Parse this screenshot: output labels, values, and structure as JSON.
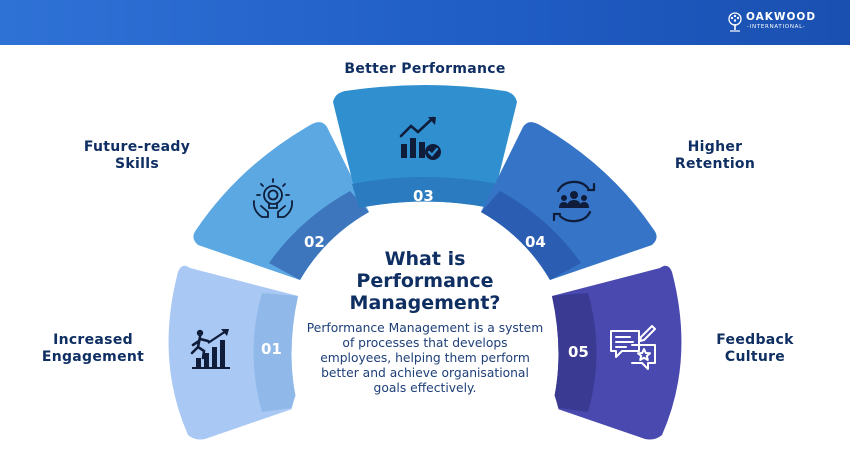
{
  "brand": {
    "name": "OAKWOOD",
    "tagline": "-INTERNATIONAL-",
    "logo_icon": "oak-tree-icon",
    "header_color": "#2468cc"
  },
  "center": {
    "title": "What is Performance Management?",
    "description": "Performance Management is a system of processes that develops employees, helping them perform better and achieve organisational goals effectively."
  },
  "segments": [
    {
      "number": "01",
      "label": "Increased Engagement",
      "icon": "climbing-growth-chart-icon",
      "color": "#a9c8f4"
    },
    {
      "number": "02",
      "label": "Future-ready Skills",
      "icon": "brain-idea-hands-icon",
      "color": "#5ba8e3"
    },
    {
      "number": "03",
      "label": "Better Performance",
      "icon": "rising-bar-chart-check-icon",
      "color": "#2f8fcf"
    },
    {
      "number": "04",
      "label": "Higher Retention",
      "icon": "people-cycle-icon",
      "color": "#3574c6"
    },
    {
      "number": "05",
      "label": "Feedback Culture",
      "icon": "feedback-chat-star-icon",
      "color": "#4a49b0"
    }
  ]
}
